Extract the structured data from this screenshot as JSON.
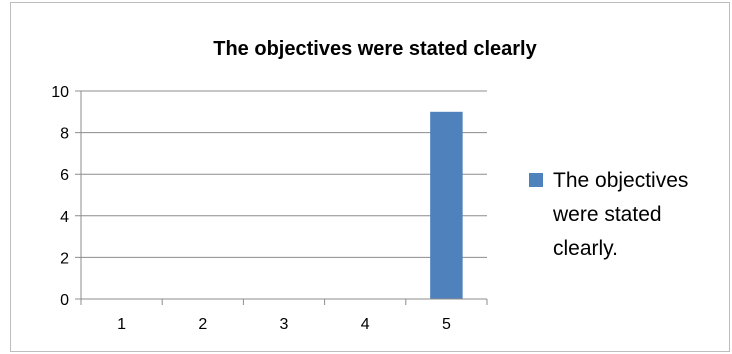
{
  "chart_data": {
    "type": "bar",
    "title": "The objectives were stated clearly",
    "categories": [
      "1",
      "2",
      "3",
      "4",
      "5"
    ],
    "series": [
      {
        "name": "The objectives were stated clearly.",
        "values": [
          0,
          0,
          0,
          0,
          9
        ],
        "color": "#4f81bd"
      }
    ],
    "ylim": [
      0,
      10
    ],
    "yticks": [
      0,
      2,
      4,
      6,
      8,
      10
    ],
    "grid": true,
    "legend_position": "right",
    "legend_lines": [
      "The objectives",
      "were stated",
      "clearly."
    ]
  }
}
